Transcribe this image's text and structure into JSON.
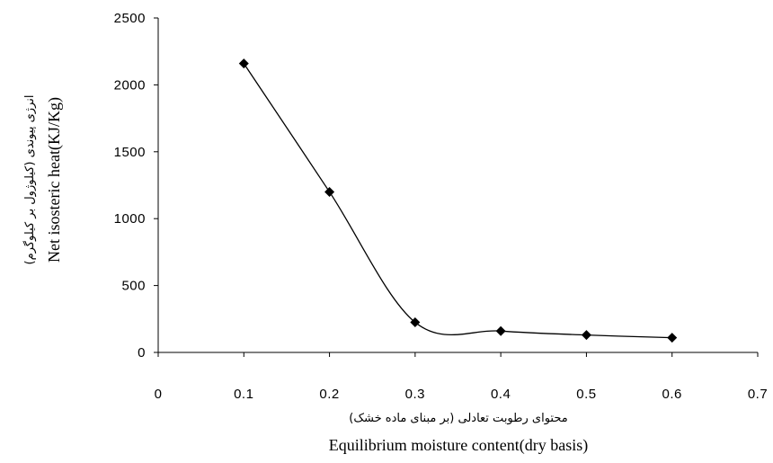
{
  "chart_data": {
    "type": "line",
    "title": "",
    "x": [
      0.1,
      0.2,
      0.3,
      0.4,
      0.5,
      0.6
    ],
    "series": [
      {
        "values": [
          2160,
          1200,
          225,
          160,
          130,
          110
        ]
      }
    ],
    "xlim": [
      0,
      0.7
    ],
    "ylim": [
      0,
      2500
    ],
    "x_ticks": [
      "0",
      "0.1",
      "0.2",
      "0.3",
      "0.4",
      "0.5",
      "0.6",
      "0.7"
    ],
    "y_ticks": [
      "0",
      "500",
      "1000",
      "1500",
      "2000",
      "2500"
    ],
    "xlabel_fa": "محتوای رطوبت تعادلی (بر مبنای ماده خشک)",
    "xlabel_en": "Equilibrium moisture content(dry basis)",
    "ylabel_fa": "انرژی پیوندی (کیلوژول بر کیلوگرم)",
    "ylabel_en": "Net isosteric heat(KJ/Kg)",
    "grid": false,
    "legend": "none",
    "line_color": "#000000",
    "marker": "diamond",
    "smooth": true
  }
}
